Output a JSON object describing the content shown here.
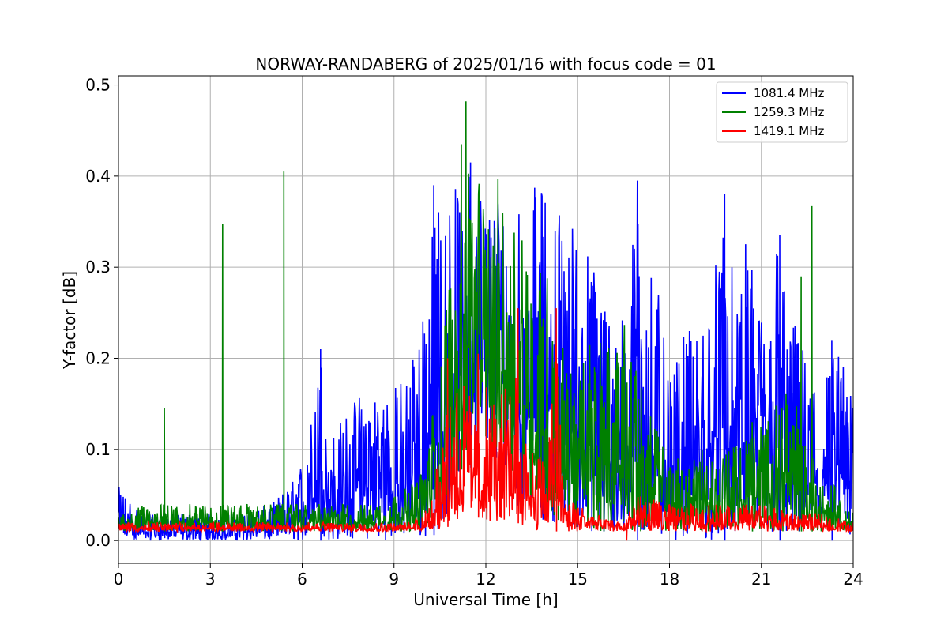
{
  "chart_data": {
    "type": "line",
    "title": "NORWAY-RANDABERG of 2025/01/16 with focus code = 01",
    "xlabel": "Universal Time [h]",
    "ylabel": "Y-factor [dB]",
    "xlim": [
      0,
      24
    ],
    "ylim": [
      -0.025,
      0.51
    ],
    "xticks": [
      0,
      3,
      6,
      9,
      12,
      15,
      18,
      21,
      24
    ],
    "yticks": [
      0.0,
      0.1,
      0.2,
      0.3,
      0.4,
      0.5
    ],
    "xtick_labels": [
      "0",
      "3",
      "6",
      "9",
      "12",
      "15",
      "18",
      "21",
      "24"
    ],
    "ytick_labels": [
      "0.0",
      "0.1",
      "0.2",
      "0.3",
      "0.4",
      "0.5"
    ],
    "grid": true,
    "legend_position": "top-right",
    "series": [
      {
        "name": "1081.4 MHz",
        "color": "#0000ff",
        "envelope": [
          [
            0.0,
            0.0,
            0.06
          ],
          [
            0.5,
            0.0,
            0.04
          ],
          [
            1.0,
            0.0,
            0.03
          ],
          [
            2.0,
            0.0,
            0.03
          ],
          [
            3.0,
            0.0,
            0.03
          ],
          [
            4.0,
            0.0,
            0.03
          ],
          [
            5.0,
            0.0,
            0.04
          ],
          [
            5.8,
            0.0,
            0.07
          ],
          [
            6.2,
            0.0,
            0.11
          ],
          [
            6.6,
            0.0,
            0.21
          ],
          [
            7.0,
            0.0,
            0.12
          ],
          [
            8.0,
            0.0,
            0.17
          ],
          [
            9.0,
            0.0,
            0.17
          ],
          [
            9.5,
            0.0,
            0.19
          ],
          [
            10.0,
            0.0,
            0.29
          ],
          [
            10.5,
            0.01,
            0.39
          ],
          [
            11.0,
            0.05,
            0.39
          ],
          [
            11.5,
            0.08,
            0.41
          ],
          [
            12.0,
            0.09,
            0.39
          ],
          [
            12.5,
            0.08,
            0.39
          ],
          [
            13.0,
            0.04,
            0.39
          ],
          [
            13.5,
            0.02,
            0.39
          ],
          [
            14.0,
            0.02,
            0.39
          ],
          [
            14.5,
            0.02,
            0.37
          ],
          [
            15.0,
            0.01,
            0.35
          ],
          [
            15.5,
            0.0,
            0.31
          ],
          [
            16.0,
            0.0,
            0.27
          ],
          [
            16.5,
            0.0,
            0.25
          ],
          [
            17.0,
            0.0,
            0.39
          ],
          [
            17.5,
            0.0,
            0.31
          ],
          [
            18.0,
            0.0,
            0.17
          ],
          [
            18.5,
            0.0,
            0.23
          ],
          [
            19.0,
            0.0,
            0.23
          ],
          [
            19.5,
            0.0,
            0.31
          ],
          [
            19.8,
            0.0,
            0.38
          ],
          [
            20.2,
            0.0,
            0.25
          ],
          [
            20.5,
            0.0,
            0.33
          ],
          [
            21.0,
            0.0,
            0.26
          ],
          [
            21.5,
            0.0,
            0.34
          ],
          [
            22.0,
            0.0,
            0.25
          ],
          [
            22.5,
            0.0,
            0.2
          ],
          [
            23.0,
            0.0,
            0.18
          ],
          [
            23.5,
            0.0,
            0.22
          ],
          [
            24.0,
            0.0,
            0.15
          ]
        ],
        "spikes": [
          [
            6.6,
            0.21
          ],
          [
            10.3,
            0.39
          ],
          [
            11.5,
            0.415
          ],
          [
            16.95,
            0.395
          ],
          [
            19.8,
            0.38
          ],
          [
            21.6,
            0.335
          ],
          [
            23.3,
            0.22
          ]
        ]
      },
      {
        "name": "1259.3 MHz",
        "color": "#008000",
        "envelope": [
          [
            0.0,
            0.01,
            0.03
          ],
          [
            1.0,
            0.01,
            0.04
          ],
          [
            2.0,
            0.01,
            0.04
          ],
          [
            3.0,
            0.01,
            0.04
          ],
          [
            4.0,
            0.01,
            0.04
          ],
          [
            5.0,
            0.01,
            0.04
          ],
          [
            6.0,
            0.01,
            0.04
          ],
          [
            7.0,
            0.01,
            0.04
          ],
          [
            8.0,
            0.01,
            0.04
          ],
          [
            9.0,
            0.01,
            0.05
          ],
          [
            9.5,
            0.01,
            0.06
          ],
          [
            10.0,
            0.01,
            0.08
          ],
          [
            10.5,
            0.02,
            0.2
          ],
          [
            11.0,
            0.05,
            0.36
          ],
          [
            11.5,
            0.12,
            0.41
          ],
          [
            12.0,
            0.1,
            0.4
          ],
          [
            12.5,
            0.09,
            0.4
          ],
          [
            13.0,
            0.07,
            0.38
          ],
          [
            13.5,
            0.04,
            0.32
          ],
          [
            14.0,
            0.02,
            0.3
          ],
          [
            14.5,
            0.02,
            0.22
          ],
          [
            15.0,
            0.01,
            0.17
          ],
          [
            15.5,
            0.01,
            0.24
          ],
          [
            16.0,
            0.01,
            0.22
          ],
          [
            16.5,
            0.01,
            0.24
          ],
          [
            17.0,
            0.01,
            0.18
          ],
          [
            17.5,
            0.01,
            0.13
          ],
          [
            18.0,
            0.01,
            0.09
          ],
          [
            19.0,
            0.01,
            0.1
          ],
          [
            20.0,
            0.01,
            0.1
          ],
          [
            21.0,
            0.01,
            0.13
          ],
          [
            22.0,
            0.01,
            0.17
          ],
          [
            22.5,
            0.01,
            0.1
          ],
          [
            23.0,
            0.01,
            0.08
          ],
          [
            24.0,
            0.01,
            0.03
          ]
        ],
        "spikes": [
          [
            1.5,
            0.145
          ],
          [
            3.4,
            0.347
          ],
          [
            5.4,
            0.405
          ],
          [
            11.35,
            0.482
          ],
          [
            11.2,
            0.435
          ],
          [
            22.65,
            0.367
          ],
          [
            22.3,
            0.29
          ],
          [
            20.7,
            0.13
          ]
        ]
      },
      {
        "name": "1419.1 MHz",
        "color": "#ff0000",
        "envelope": [
          [
            0.0,
            0.01,
            0.02
          ],
          [
            2.0,
            0.01,
            0.02
          ],
          [
            4.0,
            0.01,
            0.02
          ],
          [
            6.0,
            0.01,
            0.02
          ],
          [
            8.0,
            0.01,
            0.02
          ],
          [
            9.5,
            0.01,
            0.02
          ],
          [
            10.0,
            0.01,
            0.03
          ],
          [
            10.5,
            0.01,
            0.1
          ],
          [
            11.0,
            0.02,
            0.19
          ],
          [
            11.5,
            0.03,
            0.16
          ],
          [
            12.0,
            0.02,
            0.17
          ],
          [
            12.5,
            0.02,
            0.16
          ],
          [
            13.0,
            0.02,
            0.2
          ],
          [
            13.5,
            0.01,
            0.1
          ],
          [
            14.0,
            0.01,
            0.09
          ],
          [
            14.3,
            0.01,
            0.25
          ],
          [
            14.6,
            0.01,
            0.05
          ],
          [
            15.5,
            0.01,
            0.03
          ],
          [
            16.5,
            0.01,
            0.02
          ],
          [
            17.0,
            0.01,
            0.05
          ],
          [
            18.0,
            0.01,
            0.04
          ],
          [
            19.0,
            0.01,
            0.04
          ],
          [
            20.0,
            0.01,
            0.04
          ],
          [
            21.0,
            0.01,
            0.04
          ],
          [
            22.0,
            0.01,
            0.03
          ],
          [
            23.0,
            0.01,
            0.03
          ],
          [
            24.0,
            0.01,
            0.02
          ]
        ],
        "spikes": [
          [
            10.75,
            0.2
          ],
          [
            11.75,
            0.205
          ],
          [
            13.05,
            0.255
          ],
          [
            14.3,
            0.255
          ],
          [
            16.6,
            0.0
          ]
        ]
      }
    ]
  }
}
